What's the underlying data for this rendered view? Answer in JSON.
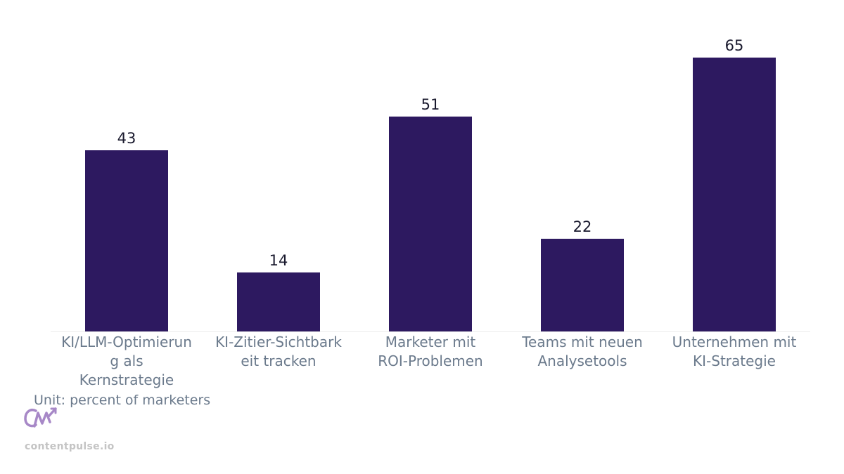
{
  "chart_data": {
    "type": "bar",
    "categories": [
      "KI/LLM-Optimierung als Kernstrategie",
      "KI-Zitier-Sichtbarkeit tracken",
      "Marketer mit ROI-Problemen",
      "Teams mit neuen Analysetools",
      "Unternehmen mit KI-Strategie"
    ],
    "category_lines": [
      [
        "KI/LLM-Optimierun",
        "g als",
        "Kernstrategie"
      ],
      [
        "KI-Zitier-Sichtbark",
        "eit tracken"
      ],
      [
        "Marketer mit",
        "ROI-Problemen"
      ],
      [
        "Teams mit neuen",
        "Analysetools"
      ],
      [
        "Unternehmen mit",
        "KI-Strategie"
      ]
    ],
    "values": [
      43,
      14,
      51,
      22,
      65
    ],
    "data_labels": [
      "43",
      "14",
      "51",
      "22",
      "65"
    ],
    "ylim": [
      0,
      65
    ],
    "grid": false,
    "colors": {
      "bar": "#2d1960",
      "data_label": "#1a1a2e",
      "tick_label": "#6b7a8c",
      "baseline": "#ececec"
    }
  },
  "unit_label": "Unit: percent of marketers",
  "brand": {
    "name": "contentpulse.io",
    "logo_color": "#a788c7"
  }
}
